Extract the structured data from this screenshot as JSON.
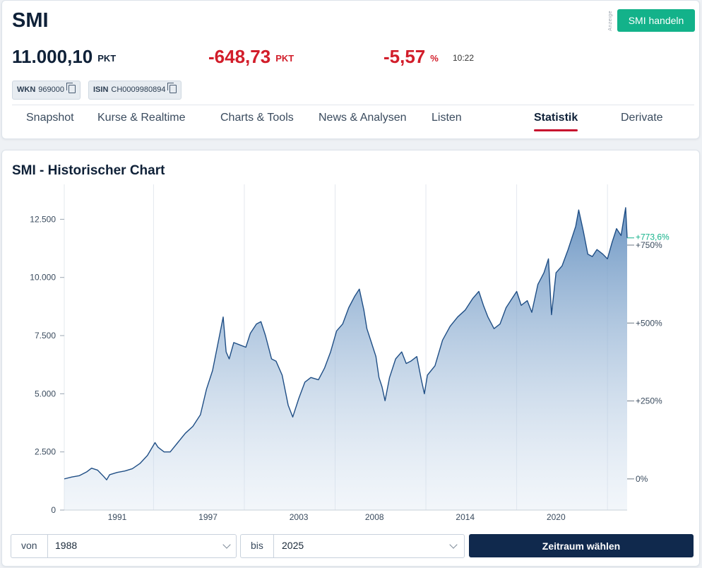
{
  "header": {
    "title": "SMI",
    "ad_label": "Anzeige",
    "trade_button": "SMI handeln",
    "price": "11.000,10",
    "price_unit": "PKT",
    "change": "-648,73",
    "change_unit": "PKT",
    "change_pct": "-5,57",
    "change_pct_unit": "%",
    "time": "10:22",
    "wkn_label": "WKN",
    "wkn": "969000",
    "isin_label": "ISIN",
    "isin": "CH0009980894",
    "colors": {
      "negative": "#d21d2a",
      "positive": "#13b28a",
      "accent": "#c8102e"
    }
  },
  "tabs": [
    {
      "label": "Snapshot",
      "active": false
    },
    {
      "label": "Kurse & Realtime",
      "active": false
    },
    {
      "label": "Charts & Tools",
      "active": false
    },
    {
      "label": "News & Analysen",
      "active": false
    },
    {
      "label": "Listen",
      "active": false
    },
    {
      "label": "Statistik",
      "active": true
    },
    {
      "label": "Derivate",
      "active": false
    }
  ],
  "chart_title": "SMI - Historischer Chart",
  "controls": {
    "from_label": "von",
    "from_value": "1988",
    "to_label": "bis",
    "to_value": "2025",
    "submit_label": "Zeitraum wählen"
  },
  "chart_data": {
    "type": "area",
    "x_ticks": [
      "1991",
      "1997",
      "2003",
      "2008",
      "2014",
      "2020"
    ],
    "y_ticks": [
      "0",
      "2.500",
      "5.000",
      "7.500",
      "10.000",
      "12.500"
    ],
    "y_tick_values": [
      0,
      2500,
      5000,
      7500,
      10000,
      12500
    ],
    "ylim": [
      0,
      14000
    ],
    "xlim": [
      1988.0,
      2025.2
    ],
    "right_axis_ticks": [
      "0%",
      "+250%",
      "+500%",
      "+750%"
    ],
    "right_axis_values": [
      1340,
      4690,
      8040,
      11390
    ],
    "current_label": "+773,6%",
    "current_value": 11700,
    "grid": true,
    "series": [
      {
        "values": [
          [
            1988.0,
            1340
          ],
          [
            1988.5,
            1420
          ],
          [
            1989.0,
            1480
          ],
          [
            1989.5,
            1650
          ],
          [
            1989.8,
            1800
          ],
          [
            1990.2,
            1720
          ],
          [
            1990.6,
            1450
          ],
          [
            1990.8,
            1300
          ],
          [
            1991.0,
            1520
          ],
          [
            1991.5,
            1620
          ],
          [
            1992.0,
            1680
          ],
          [
            1992.5,
            1780
          ],
          [
            1993.0,
            2000
          ],
          [
            1993.5,
            2350
          ],
          [
            1994.0,
            2900
          ],
          [
            1994.2,
            2700
          ],
          [
            1994.6,
            2500
          ],
          [
            1995.0,
            2500
          ],
          [
            1995.5,
            2900
          ],
          [
            1996.0,
            3300
          ],
          [
            1996.5,
            3600
          ],
          [
            1997.0,
            4100
          ],
          [
            1997.4,
            5200
          ],
          [
            1997.8,
            6000
          ],
          [
            1998.2,
            7300
          ],
          [
            1998.5,
            8300
          ],
          [
            1998.7,
            6800
          ],
          [
            1998.9,
            6500
          ],
          [
            1999.2,
            7200
          ],
          [
            1999.6,
            7100
          ],
          [
            2000.0,
            7000
          ],
          [
            2000.3,
            7600
          ],
          [
            2000.7,
            8000
          ],
          [
            2001.0,
            8100
          ],
          [
            2001.3,
            7500
          ],
          [
            2001.7,
            6500
          ],
          [
            2002.0,
            6400
          ],
          [
            2002.4,
            5800
          ],
          [
            2002.8,
            4500
          ],
          [
            2003.1,
            4000
          ],
          [
            2003.5,
            4800
          ],
          [
            2003.9,
            5500
          ],
          [
            2004.3,
            5700
          ],
          [
            2004.8,
            5600
          ],
          [
            2005.2,
            6100
          ],
          [
            2005.6,
            6800
          ],
          [
            2006.0,
            7700
          ],
          [
            2006.4,
            8000
          ],
          [
            2006.8,
            8700
          ],
          [
            2007.2,
            9200
          ],
          [
            2007.5,
            9500
          ],
          [
            2007.8,
            8600
          ],
          [
            2008.0,
            7800
          ],
          [
            2008.3,
            7200
          ],
          [
            2008.6,
            6600
          ],
          [
            2008.8,
            5700
          ],
          [
            2009.0,
            5300
          ],
          [
            2009.2,
            4700
          ],
          [
            2009.5,
            5700
          ],
          [
            2009.9,
            6500
          ],
          [
            2010.3,
            6800
          ],
          [
            2010.6,
            6300
          ],
          [
            2010.9,
            6400
          ],
          [
            2011.3,
            6600
          ],
          [
            2011.6,
            5600
          ],
          [
            2011.8,
            5000
          ],
          [
            2012.0,
            5800
          ],
          [
            2012.5,
            6200
          ],
          [
            2013.0,
            7300
          ],
          [
            2013.5,
            7900
          ],
          [
            2014.0,
            8300
          ],
          [
            2014.5,
            8600
          ],
          [
            2015.0,
            9100
          ],
          [
            2015.4,
            9400
          ],
          [
            2015.7,
            8800
          ],
          [
            2016.0,
            8300
          ],
          [
            2016.4,
            7800
          ],
          [
            2016.8,
            8000
          ],
          [
            2017.2,
            8700
          ],
          [
            2017.6,
            9100
          ],
          [
            2017.9,
            9400
          ],
          [
            2018.2,
            8800
          ],
          [
            2018.6,
            9000
          ],
          [
            2018.9,
            8500
          ],
          [
            2019.3,
            9700
          ],
          [
            2019.7,
            10200
          ],
          [
            2020.0,
            10800
          ],
          [
            2020.2,
            8400
          ],
          [
            2020.5,
            10200
          ],
          [
            2020.9,
            10500
          ],
          [
            2021.3,
            11200
          ],
          [
            2021.8,
            12200
          ],
          [
            2022.0,
            12900
          ],
          [
            2022.3,
            12000
          ],
          [
            2022.6,
            11000
          ],
          [
            2022.9,
            10900
          ],
          [
            2023.2,
            11200
          ],
          [
            2023.6,
            11000
          ],
          [
            2023.9,
            10800
          ],
          [
            2024.2,
            11500
          ],
          [
            2024.5,
            12100
          ],
          [
            2024.8,
            11800
          ],
          [
            2025.0,
            12600
          ],
          [
            2025.1,
            13000
          ],
          [
            2025.2,
            11700
          ]
        ]
      }
    ]
  }
}
